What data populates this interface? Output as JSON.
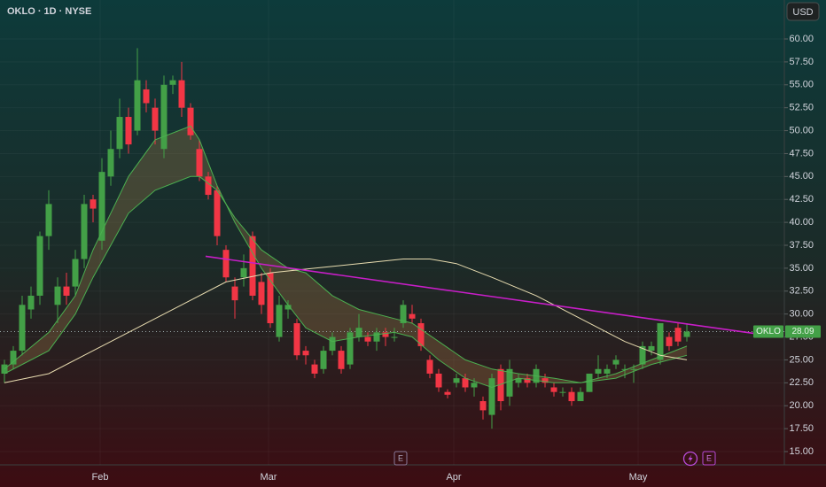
{
  "chart_data": {
    "type": "candlestick",
    "title": "OKLO · 1D · NYSE",
    "currency": "USD",
    "ticker": "OKLO",
    "last_price": {
      "value": 28.09,
      "label": "28.09"
    },
    "up_color": "#43a047",
    "down_color": "#f23645",
    "open": [
      23.5,
      24.5,
      26,
      30.5,
      32,
      38.5,
      31,
      33,
      33,
      36,
      42.5,
      38,
      45,
      48,
      51.5,
      50,
      54.5,
      52.5,
      48,
      55,
      55.5,
      52.5,
      48,
      45,
      43.5,
      37,
      33,
      34,
      38.5,
      33.5,
      34.5,
      27.5,
      30.5,
      29,
      26,
      24.5,
      24,
      26,
      26,
      24.5,
      27.5,
      27.5,
      27,
      28,
      27.5,
      29,
      30,
      29,
      25,
      23.5,
      21.5,
      22.5,
      23,
      22,
      20.5,
      19,
      24,
      21,
      22.5,
      23,
      22.5,
      23,
      22,
      21.5,
      21.5,
      20.5,
      21.5,
      23.5,
      23.5,
      24.5,
      24,
      24,
      24.5,
      26,
      25,
      27.5,
      28.5,
      27.5
    ],
    "high": [
      25,
      26.5,
      32,
      33,
      39,
      43.5,
      34,
      34.5,
      37,
      43,
      43,
      47,
      50,
      53.5,
      52.5,
      59,
      55.5,
      53.5,
      56,
      56,
      57.5,
      53,
      49,
      45.5,
      44,
      37.5,
      34,
      36.5,
      39,
      34.5,
      35,
      32,
      31.5,
      29.5,
      26.5,
      25,
      26.5,
      28,
      26.5,
      28.5,
      30,
      28,
      28.5,
      28.5,
      28.5,
      31.5,
      31,
      29.5,
      25.5,
      24,
      21.8,
      23.5,
      23.5,
      23,
      21,
      23.5,
      24.5,
      25,
      23.5,
      23.5,
      24.5,
      23.5,
      22.5,
      22,
      22,
      22,
      23.5,
      25.5,
      24.5,
      25.5,
      24.5,
      24.5,
      27,
      27,
      29,
      28,
      29,
      29
    ],
    "low": [
      22.5,
      24,
      25.5,
      29.5,
      31,
      37,
      29,
      31,
      32,
      35,
      40,
      37,
      44,
      47,
      47.5,
      49.5,
      52,
      48.5,
      47,
      54,
      51.5,
      49,
      44.5,
      42.5,
      37.5,
      33.5,
      29.5,
      33,
      31.5,
      30,
      28.5,
      27,
      29.5,
      25,
      24.5,
      23,
      23.5,
      25.5,
      23.5,
      24,
      27,
      26.5,
      26,
      26.5,
      27,
      28.5,
      29,
      26,
      23,
      21.5,
      20.8,
      22,
      21.5,
      21,
      18.5,
      17.5,
      19.5,
      20,
      22,
      22,
      22,
      22,
      21,
      21,
      20,
      20.5,
      21.5,
      23,
      23,
      24,
      23,
      22.5,
      24,
      25.5,
      24.5,
      26,
      26.5,
      27
    ],
    "close": [
      24.5,
      26,
      31,
      32,
      38.5,
      42,
      33,
      32,
      36,
      42,
      41.5,
      45.5,
      48,
      51.5,
      48.5,
      55.5,
      53,
      50,
      55,
      55.5,
      52.5,
      49.5,
      45,
      43,
      38.5,
      34,
      31.5,
      35,
      32,
      31,
      29,
      31,
      31,
      25.5,
      25.5,
      23.5,
      26,
      27.5,
      24,
      28,
      28.5,
      27,
      28,
      27.5,
      27.5,
      31,
      29.5,
      26.5,
      23.5,
      22,
      21.2,
      23,
      22,
      22.5,
      19.5,
      23,
      20.5,
      24,
      23,
      22.5,
      24,
      22.5,
      21.5,
      21.5,
      20.5,
      21.5,
      23.5,
      24,
      24,
      25,
      24,
      24,
      26.5,
      26.5,
      29,
      26.5,
      27,
      28.09
    ],
    "band_color": "rgba(150,115,70,0.35)",
    "lines": [
      {
        "color": "#4caf50",
        "x": [
          0,
          5,
          8,
          10,
          14,
          17,
          21,
          22,
          24,
          26,
          29,
          32,
          34,
          37,
          40,
          44,
          46,
          49,
          52,
          55,
          58,
          62,
          65,
          69,
          73,
          77
        ],
        "values": [
          24,
          28,
          32,
          37,
          45,
          49,
          50.5,
          49,
          44,
          40,
          35,
          31,
          28.5,
          27,
          27.5,
          28,
          27.5,
          25,
          23,
          22,
          23,
          22.5,
          22.5,
          23.5,
          25,
          26.5
        ]
      },
      {
        "color": "#4caf50",
        "x": [
          0,
          5,
          8,
          10,
          14,
          17,
          21,
          22,
          24,
          26,
          29,
          32,
          34,
          37,
          40,
          44,
          46,
          49,
          52,
          55,
          58,
          62,
          65,
          69,
          73,
          77
        ],
        "values": [
          23.5,
          26,
          30,
          34,
          41,
          43.5,
          45,
          45,
          43.5,
          40.5,
          37,
          35,
          34.5,
          32,
          30.5,
          29.5,
          29,
          27,
          25,
          24,
          23.5,
          23,
          22.5,
          23,
          24.5,
          25.5
        ]
      },
      {
        "color": "#e8dcb0",
        "x": [
          0,
          5,
          10,
          15,
          20,
          25,
          30,
          35,
          40,
          45,
          48,
          51,
          55,
          60,
          65,
          70,
          74,
          77
        ],
        "values": [
          22.5,
          23.5,
          26,
          28.5,
          31,
          33.5,
          34.5,
          35,
          35.5,
          36,
          36,
          35.5,
          34,
          32,
          29.5,
          27,
          25.5,
          25
        ]
      }
    ],
    "trendline": {
      "color": "#c81ec8",
      "x": [
        22.7,
        84.5
      ],
      "values": [
        36.3,
        27.9
      ]
    },
    "events": [
      {
        "label": "E",
        "x": 44.7
      },
      {
        "label": "E",
        "x": 79.5
      }
    ],
    "xlim": [
      -0.5,
      88
    ],
    "xticks": [
      {
        "value": 10.8,
        "label": "Feb"
      },
      {
        "value": 29.8,
        "label": "Mar"
      },
      {
        "value": 50.7,
        "label": "Apr"
      },
      {
        "value": 71.5,
        "label": "May"
      }
    ],
    "ylim": [
      13.55,
      64.25
    ],
    "yticks": [
      {
        "value": 15,
        "label": "15.00"
      },
      {
        "value": 17.5,
        "label": "17.50"
      },
      {
        "value": 20,
        "label": "20.00"
      },
      {
        "value": 22.5,
        "label": "22.50"
      },
      {
        "value": 25,
        "label": "25.00"
      },
      {
        "value": 27.5,
        "label": "27.50"
      },
      {
        "value": 30,
        "label": "30.00"
      },
      {
        "value": 32.5,
        "label": "32.50"
      },
      {
        "value": 35,
        "label": "35.00"
      },
      {
        "value": 37.5,
        "label": "37.50"
      },
      {
        "value": 40,
        "label": "40.00"
      },
      {
        "value": 42.5,
        "label": "42.50"
      },
      {
        "value": 45,
        "label": "45.00"
      },
      {
        "value": 47.5,
        "label": "47.50"
      },
      {
        "value": 50,
        "label": "50.00"
      },
      {
        "value": 52.5,
        "label": "52.50"
      },
      {
        "value": 55,
        "label": "55.00"
      },
      {
        "value": 57.5,
        "label": "57.50"
      },
      {
        "value": 60,
        "label": "60.00"
      }
    ]
  }
}
